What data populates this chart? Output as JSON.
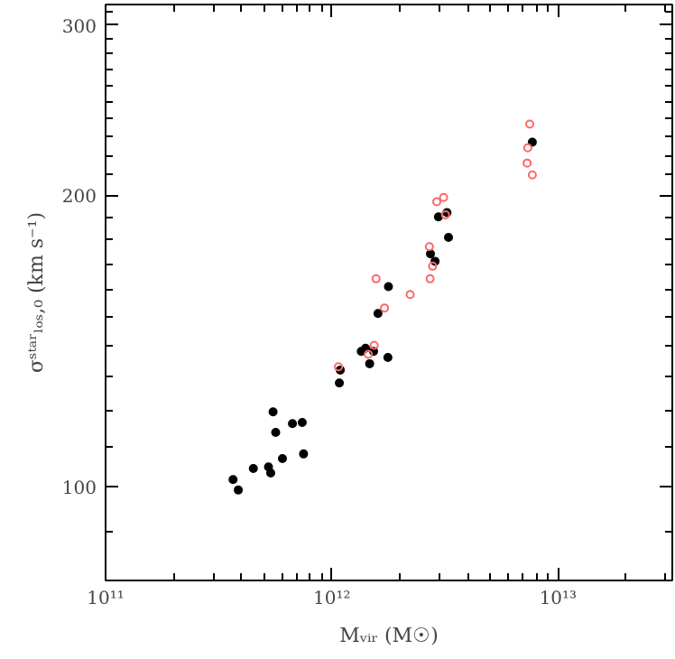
{
  "chart_data": {
    "type": "scatter",
    "xlabel": "Mᵥᵢᵣ (M☉)",
    "ylabel": "σˢᵗᵃʳₗₒₛ,₀ (km s⁻¹)",
    "log": "xy",
    "grid": false,
    "marker": "circle",
    "xlim": [
      100000000000.0,
      32000000000000.0
    ],
    "ylim": [
      80,
      315
    ],
    "xticks": [
      {
        "value": 100000000000.0,
        "label": "10¹¹"
      },
      {
        "value": 1000000000000.0,
        "label": "10¹²"
      },
      {
        "value": 10000000000000.0,
        "label": "10¹³"
      }
    ],
    "yticks": [
      100,
      200,
      300
    ],
    "series": [
      {
        "color": "#000000",
        "x": [
          7700000000000.0,
          3230000000000.0,
          2960000000000.0,
          3280000000000.0,
          2730000000000.0,
          2860000000000.0,
          1780000000000.0,
          1600000000000.0,
          1410000000000.0,
          1350000000000.0,
          1530000000000.0,
          1470000000000.0,
          1770000000000.0,
          1090000000000.0,
          1080000000000.0,
          550000000000.0,
          565000000000.0,
          670000000000.0,
          740000000000.0,
          750000000000.0,
          605000000000.0,
          450000000000.0,
          525000000000.0,
          537000000000.0,
          366000000000.0,
          386000000000.0
        ],
        "values": [
          227,
          192,
          190,
          181,
          174,
          171,
          161,
          151,
          139,
          138,
          138,
          134,
          136,
          132,
          128,
          119.5,
          113.8,
          116.2,
          116.5,
          108.1,
          106.9,
          104.4,
          104.8,
          103.3,
          101.7,
          99.2
        ]
      },
      {
        "color": "#ff6666",
        "x": [
          7500000000000.0,
          7350000000000.0,
          7300000000000.0,
          7700000000000.0,
          3120000000000.0,
          2910000000000.0,
          3180000000000.0,
          2700000000000.0,
          2790000000000.0,
          2720000000000.0,
          1570000000000.0,
          2220000000000.0,
          1710000000000.0,
          1540000000000.0,
          1450000000000.0,
          1070000000000.0
        ],
        "values": [
          237,
          224,
          216,
          210,
          199,
          197,
          191,
          177,
          169,
          164,
          164,
          158,
          153,
          140,
          137,
          133
        ]
      }
    ]
  }
}
